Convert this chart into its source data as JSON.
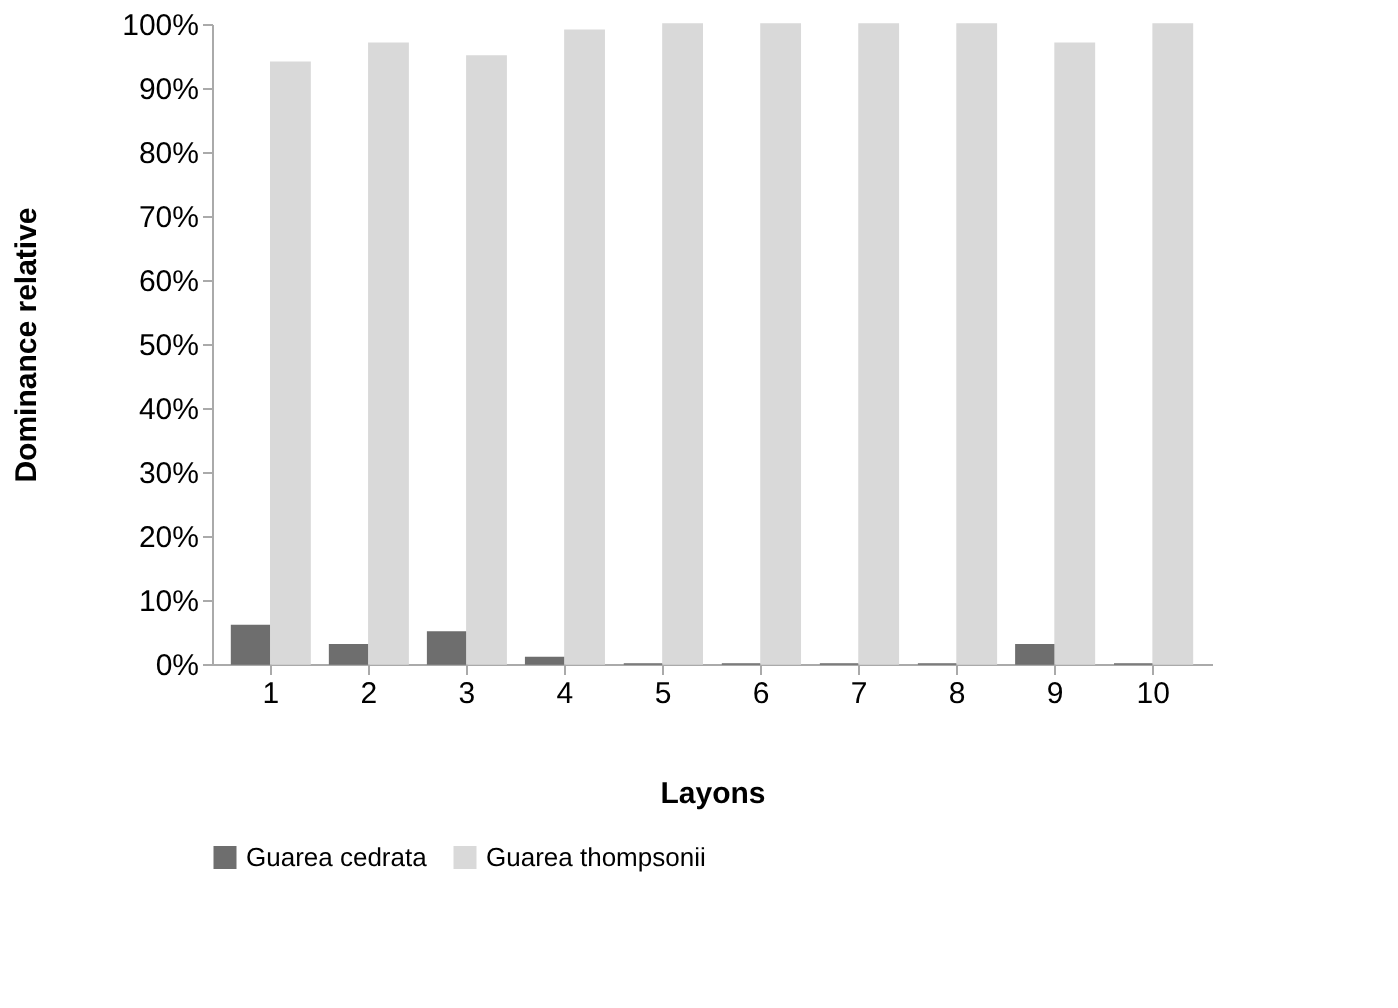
{
  "chart_data": {
    "type": "bar",
    "xlabel": "Layons",
    "ylabel": "Dominance relative",
    "categories": [
      "1",
      "2",
      "3",
      "4",
      "5",
      "6",
      "7",
      "8",
      "9",
      "10"
    ],
    "series": [
      {
        "name": "Guarea cedrata",
        "color": "#6e6e6e",
        "values": [
          6,
          3,
          5,
          1,
          0,
          0,
          0,
          0,
          3,
          0
        ]
      },
      {
        "name": "Guarea thompsonii",
        "color": "#d9d9d9",
        "values": [
          94,
          97,
          95,
          99,
          100,
          100,
          100,
          100,
          97,
          100
        ]
      }
    ],
    "ylim": [
      0,
      100
    ],
    "yticks": [
      {
        "value": 0,
        "label": "0%"
      },
      {
        "value": 10,
        "label": "10%"
      },
      {
        "value": 20,
        "label": "20%"
      },
      {
        "value": 30,
        "label": "30%"
      },
      {
        "value": 40,
        "label": "40%"
      },
      {
        "value": 50,
        "label": "50%"
      },
      {
        "value": 60,
        "label": "60%"
      },
      {
        "value": 70,
        "label": "70%"
      },
      {
        "value": 80,
        "label": "80%"
      },
      {
        "value": 90,
        "label": "90%"
      },
      {
        "value": 100,
        "label": "100%"
      }
    ],
    "grid": false,
    "legend": "bottom"
  }
}
